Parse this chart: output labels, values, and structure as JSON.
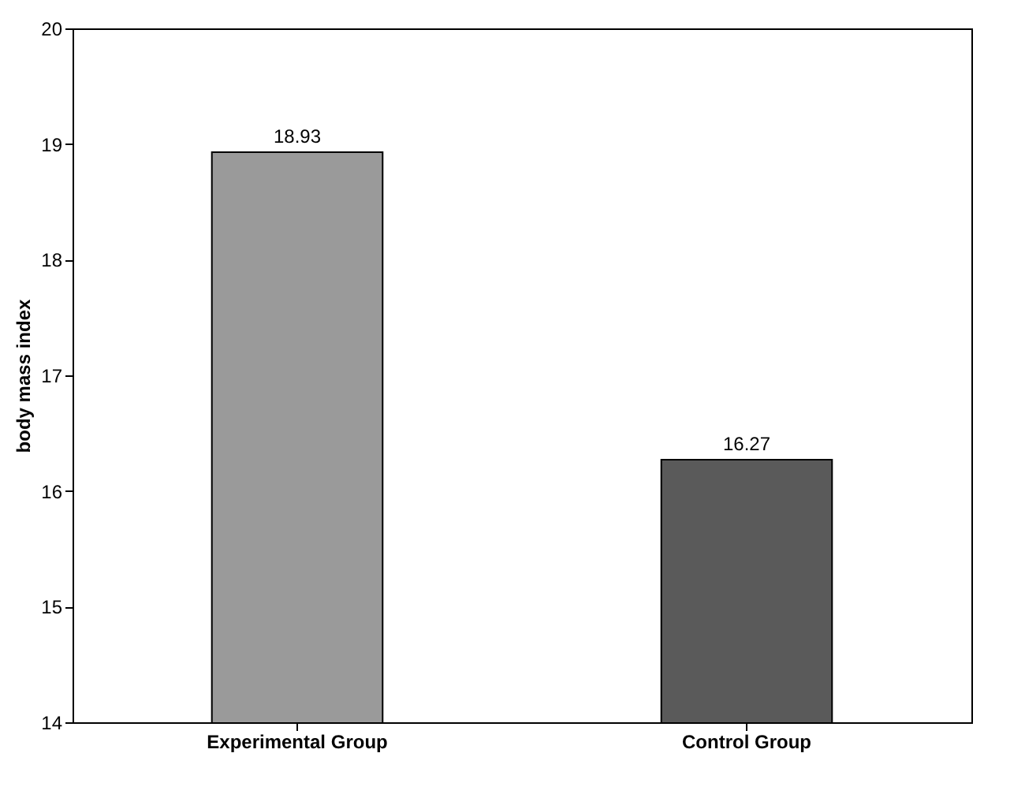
{
  "chart_data": {
    "type": "bar",
    "ylabel": "body mass index",
    "categories": [
      "Experimental Group",
      "Control Group"
    ],
    "values": [
      18.93,
      16.27
    ],
    "colors": [
      "#9a9a9a",
      "#5a5a5a"
    ],
    "ylim": [
      14,
      20
    ],
    "yticks": [
      14,
      15,
      16,
      17,
      18,
      19,
      20
    ],
    "data_labels": true,
    "grid": false
  }
}
